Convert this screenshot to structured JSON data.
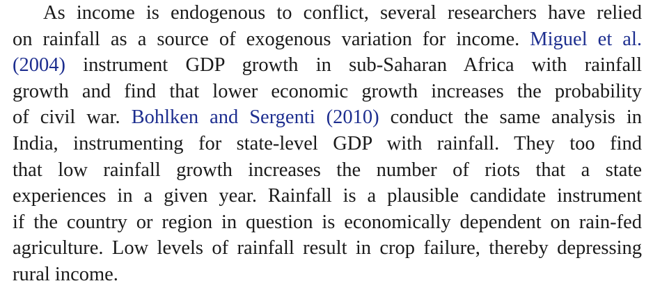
{
  "paragraph": {
    "l1": "As income is endogenous to conflict, several researchers have relied",
    "l2_a": "on rainfall as a source of exogenous variation for income.",
    "l2_cite": "Miguel et al.",
    "l3_cite": "(2004)",
    "l3_b": "instrument GDP growth in sub-Saharan Africa with rainfall",
    "l4": "growth and find that lower economic growth increases the probability",
    "l5_a": "of civil war.",
    "l5_cite": "Bohlken and Sergenti (2010)",
    "l5_b": "conduct the same analysis in",
    "l6": "India, instrumenting for state-level GDP with rainfall. They too find",
    "l7": "that low rainfall growth increases the number of riots that a state",
    "l8": "experiences in a given year. Rainfall is a plausible candidate instrument",
    "l9": "if the country or region in question is economically dependent on rain-fed",
    "l10": "agriculture. Low levels of rainfall result in crop failure, thereby depressing",
    "l11": "rural income."
  }
}
